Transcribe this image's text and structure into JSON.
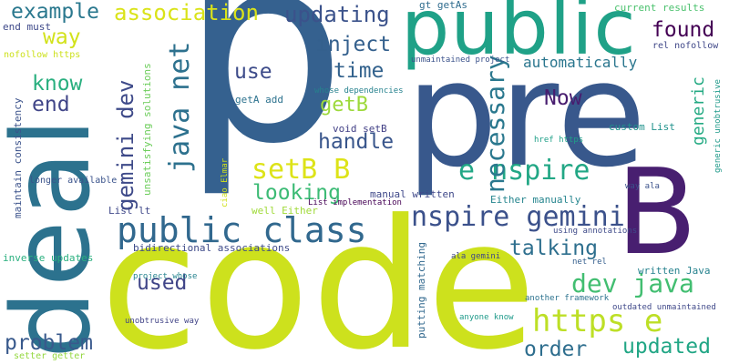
{
  "word_cloud": {
    "words": [
      {
        "text": "p",
        "color": "#35618f"
      },
      {
        "text": "code",
        "color": "#cde11d"
      },
      {
        "text": "pre",
        "color": "#38588c"
      },
      {
        "text": "B",
        "color": "#481f70"
      },
      {
        "text": "deal",
        "color": "#2c728e"
      },
      {
        "text": "public",
        "color": "#1fa187"
      },
      {
        "text": "public class",
        "color": "#31688e"
      },
      {
        "text": "nspire gemini",
        "color": "#3b518b"
      },
      {
        "text": "setB B",
        "color": "#dde318"
      },
      {
        "text": "e nspire",
        "color": "#22a785"
      },
      {
        "text": "https e",
        "color": "#bddf26"
      },
      {
        "text": "dev java",
        "color": "#42be71"
      },
      {
        "text": "example",
        "color": "#2a788e"
      },
      {
        "text": "association",
        "color": "#dae319"
      },
      {
        "text": "updating",
        "color": "#3b528b"
      },
      {
        "text": "gemini dev",
        "color": "#3e4a89"
      },
      {
        "text": "java net",
        "color": "#2d718e"
      },
      {
        "text": "necessary",
        "color": "#2a788e"
      },
      {
        "text": "found",
        "color": "#440154"
      },
      {
        "text": "Now",
        "color": "#481d6f"
      },
      {
        "text": "inject",
        "color": "#34608d"
      },
      {
        "text": "time",
        "color": "#33628d"
      },
      {
        "text": "automatically",
        "color": "#2a768e"
      },
      {
        "text": "use",
        "color": "#3e4c8a"
      },
      {
        "text": "way",
        "color": "#d2e21b"
      },
      {
        "text": "know",
        "color": "#29af7f"
      },
      {
        "text": "end",
        "color": "#404588"
      },
      {
        "text": "getB",
        "color": "#9dd93b"
      },
      {
        "text": "handle",
        "color": "#39568c"
      },
      {
        "text": "looking",
        "color": "#3cbb75"
      },
      {
        "text": "talking",
        "color": "#2e6f8e"
      },
      {
        "text": "used",
        "color": "#404588"
      },
      {
        "text": "problem",
        "color": "#38598c"
      },
      {
        "text": "order",
        "color": "#2e6e8e"
      },
      {
        "text": "updated",
        "color": "#21a685"
      },
      {
        "text": "generic",
        "color": "#24aa83"
      },
      {
        "text": "current results",
        "color": "#4ac16d"
      },
      {
        "text": "gt getAs",
        "color": "#2f6c8e"
      },
      {
        "text": "end must",
        "color": "#3e4989"
      },
      {
        "text": "nofollow https",
        "color": "#cde11d"
      },
      {
        "text": "rel nofollow",
        "color": "#3f4788"
      },
      {
        "text": "unmaintained project",
        "color": "#3b528b"
      },
      {
        "text": "whose dependencies",
        "color": "#26828e"
      },
      {
        "text": "getA add",
        "color": "#2c728e"
      },
      {
        "text": "void setB",
        "color": "#424086"
      },
      {
        "text": "custom List",
        "color": "#20928c"
      },
      {
        "text": "generic unobtrusive",
        "color": "#1f9a8a"
      },
      {
        "text": "unsatisfying solutions",
        "color": "#6ccd5a"
      },
      {
        "text": "maintain consistency",
        "color": "#3b528b"
      },
      {
        "text": "longer available",
        "color": "#3a538b"
      },
      {
        "text": "manual written",
        "color": "#3f4889"
      },
      {
        "text": "Either manually",
        "color": "#25858e"
      },
      {
        "text": "List implementation",
        "color": "#440154"
      },
      {
        "text": "way ala",
        "color": "#3b528b"
      },
      {
        "text": "href https",
        "color": "#1fa088"
      },
      {
        "text": "List lt",
        "color": "#3f4889"
      },
      {
        "text": "well Either",
        "color": "#a0da39"
      },
      {
        "text": "ciao Elmar",
        "color": "#d0e11c"
      },
      {
        "text": "bidirectional associations",
        "color": "#3e4a89"
      },
      {
        "text": "inverse updates",
        "color": "#2ab07f"
      },
      {
        "text": "putting matching",
        "color": "#31688e"
      },
      {
        "text": "ala gemini",
        "color": "#3f4788"
      },
      {
        "text": "using annotations",
        "color": "#3e4a89"
      },
      {
        "text": "net rel",
        "color": "#355f8d"
      },
      {
        "text": "written Java",
        "color": "#26828e"
      },
      {
        "text": "project whose",
        "color": "#25838e"
      },
      {
        "text": "another framework",
        "color": "#2c728e"
      },
      {
        "text": "outdated unmaintained",
        "color": "#3f4889"
      },
      {
        "text": "unobtrusive way",
        "color": "#414487"
      },
      {
        "text": "anyone know",
        "color": "#1f9a8a"
      },
      {
        "text": "setter getter",
        "color": "#95d840"
      }
    ]
  }
}
